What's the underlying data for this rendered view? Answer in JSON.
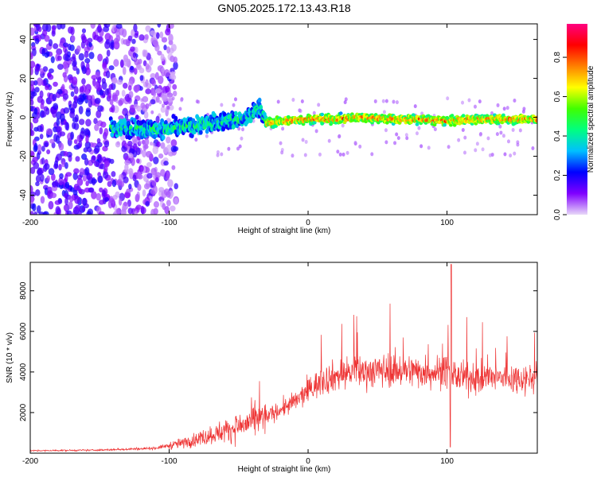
{
  "title": "GN05.2025.172.13.43.R18",
  "chart_data": [
    {
      "type": "heatmap",
      "xlabel": "Height of straight line (km)",
      "ylabel": "Frequency (Hz)",
      "xlim": [
        -200,
        165
      ],
      "ylim": [
        -50,
        48
      ],
      "xticks": [
        -200,
        -100,
        0,
        100
      ],
      "yticks": [
        -40,
        -20,
        0,
        20,
        40
      ],
      "grid": false,
      "colorbar": {
        "label": "Normalized spectral amplitude",
        "range": [
          0.0,
          0.97
        ],
        "ticks": [
          0.0,
          0.2,
          0.4,
          0.6,
          0.8
        ],
        "colormap": [
          "#e8d8f8",
          "#8000ff",
          "#0000ff",
          "#00c0ff",
          "#00ff80",
          "#40ff00",
          "#ffff00",
          "#ff8000",
          "#ff0000",
          "#ff0080"
        ]
      },
      "ridge": {
        "x": [
          -140,
          -120,
          -100,
          -80,
          -60,
          -45,
          -35,
          -30,
          -20,
          0,
          20,
          40,
          60,
          80,
          100,
          120,
          140,
          165
        ],
        "y": [
          -5,
          -6,
          -6,
          -4,
          -2,
          -1,
          5,
          -3,
          -2,
          -1,
          -1,
          0,
          -1,
          -1,
          -2,
          -1,
          -1,
          -1
        ]
      }
    },
    {
      "type": "line",
      "xlabel": "Height of straight line (km)",
      "ylabel": "SNR (10 * v/v)",
      "xlim": [
        -200,
        165
      ],
      "ylim": [
        0,
        9400
      ],
      "xticks": [
        -200,
        -100,
        0,
        100
      ],
      "yticks": [
        2000,
        4000,
        6000,
        8000
      ],
      "grid": false,
      "series_color": "#ee3333",
      "envelope": {
        "x": [
          -200,
          -150,
          -110,
          -90,
          -70,
          -50,
          -30,
          -10,
          10,
          30,
          60,
          90,
          100,
          110,
          130,
          165
        ],
        "y": [
          120,
          150,
          250,
          500,
          900,
          1300,
          1800,
          2500,
          3600,
          4000,
          4100,
          4000,
          4050,
          3700,
          3700,
          3700
        ]
      },
      "spike": {
        "x": 103,
        "y": 9300
      }
    }
  ]
}
